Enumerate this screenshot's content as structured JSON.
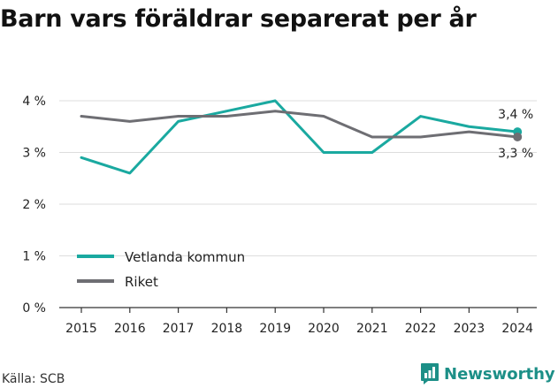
{
  "chart_data": {
    "type": "line",
    "title": "Barn vars föräldrar separerat per år",
    "x": [
      "2015",
      "2016",
      "2017",
      "2018",
      "2019",
      "2020",
      "2021",
      "2022",
      "2023",
      "2024"
    ],
    "series": [
      {
        "name": "Vetlanda kommun",
        "color": "#1aa9a0",
        "values": [
          2.9,
          2.6,
          3.6,
          3.8,
          4.0,
          3.0,
          3.0,
          3.7,
          3.5,
          3.4
        ],
        "end_label": "3,4 %"
      },
      {
        "name": "Riket",
        "color": "#6e6e73",
        "values": [
          3.7,
          3.6,
          3.7,
          3.7,
          3.8,
          3.7,
          3.3,
          3.3,
          3.4,
          3.3
        ],
        "end_label": "3,3 %"
      }
    ],
    "ylim": [
      0,
      4
    ],
    "yticks": [
      {
        "value": 0,
        "label": "0 %"
      },
      {
        "value": 1,
        "label": "1 %"
      },
      {
        "value": 2,
        "label": "2 %"
      },
      {
        "value": 3,
        "label": "3 %"
      },
      {
        "value": 4,
        "label": "4 %"
      }
    ],
    "grid": true,
    "legend": "bottom-left",
    "xlabel": "",
    "ylabel": ""
  },
  "source": "Källa: SCB",
  "brand": {
    "name": "Newsworthy",
    "icon": "newsworthy-logo-icon",
    "color": "#1c8f87"
  },
  "colors": {
    "grid": "#dddddd",
    "axis": "#333333",
    "text": "#222222"
  }
}
